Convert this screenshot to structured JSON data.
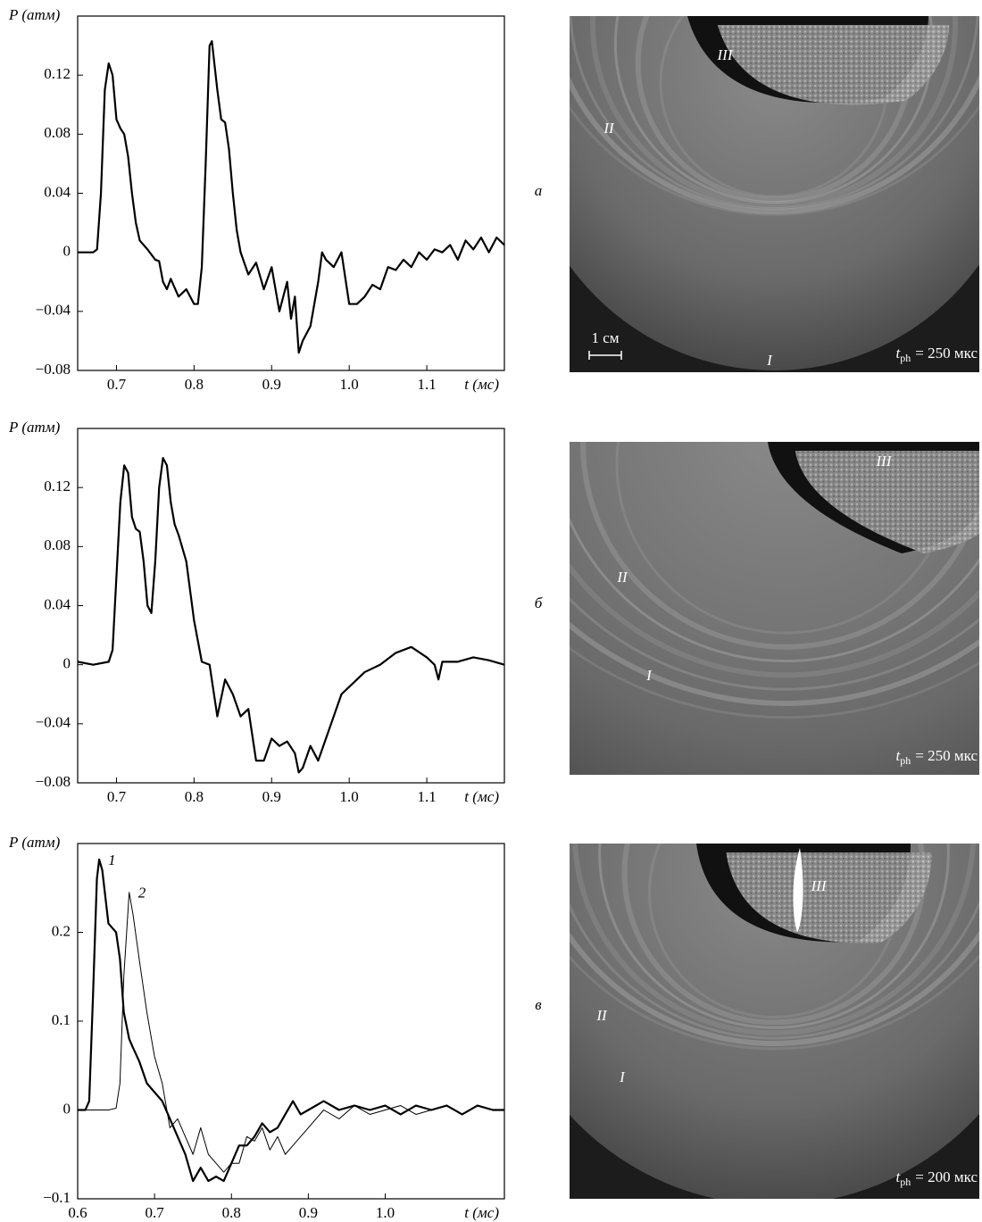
{
  "chart_data": [
    {
      "type": "line",
      "y_label": "P (атм)",
      "x_label": "t (мс)",
      "xlim": [
        0.65,
        1.2
      ],
      "ylim": [
        -0.08,
        0.16
      ],
      "xticks": [
        0.7,
        0.8,
        0.9,
        {
          "value": 1,
          "label": "1.0"
        },
        1.1
      ],
      "yticks": [
        {
          "value": -0.08,
          "label": "−0.08"
        },
        {
          "value": -0.04,
          "label": "−0.04"
        },
        0,
        0.04,
        0.08,
        0.12
      ],
      "x": [
        0.65,
        0.66,
        0.67,
        0.675,
        0.68,
        0.685,
        0.69,
        0.695,
        0.7,
        0.705,
        0.71,
        0.715,
        0.72,
        0.725,
        0.73,
        0.74,
        0.75,
        0.755,
        0.76,
        0.765,
        0.77,
        0.78,
        0.79,
        0.8,
        0.805,
        0.81,
        0.815,
        0.82,
        0.823,
        0.83,
        0.835,
        0.84,
        0.845,
        0.85,
        0.855,
        0.86,
        0.87,
        0.88,
        0.89,
        0.9,
        0.91,
        0.92,
        0.925,
        0.93,
        0.935,
        0.94,
        0.95,
        0.96,
        0.965,
        0.97,
        0.98,
        0.99,
        1.0,
        1.01,
        1.02,
        1.03,
        1.04,
        1.05,
        1.06,
        1.07,
        1.08,
        1.09,
        1.1,
        1.11,
        1.12,
        1.13,
        1.14,
        1.15,
        1.16,
        1.17,
        1.18,
        1.19,
        1.2
      ],
      "series": [
        {
          "color": "#000000",
          "values": [
            0,
            0,
            0,
            0.002,
            0.04,
            0.11,
            0.128,
            0.12,
            0.09,
            0.084,
            0.08,
            0.065,
            0.04,
            0.02,
            0.008,
            0.002,
            -0.005,
            -0.006,
            -0.02,
            -0.025,
            -0.018,
            -0.03,
            -0.025,
            -0.035,
            -0.035,
            -0.01,
            0.06,
            0.14,
            0.143,
            0.11,
            0.09,
            0.088,
            0.07,
            0.04,
            0.015,
            0,
            -0.015,
            -0.007,
            -0.025,
            -0.01,
            -0.04,
            -0.02,
            -0.045,
            -0.03,
            -0.068,
            -0.06,
            -0.05,
            -0.02,
            0,
            -0.005,
            -0.01,
            0,
            -0.035,
            -0.035,
            -0.03,
            -0.022,
            -0.025,
            -0.01,
            -0.012,
            -0.005,
            -0.01,
            0,
            -0.005,
            0.002,
            0,
            0.005,
            -0.005,
            0.008,
            0.002,
            0.01,
            0,
            0.01,
            0.005
          ]
        }
      ]
    },
    {
      "type": "line",
      "y_label": "P (атм)",
      "x_label": "t (мс)",
      "xlim": [
        0.65,
        1.2
      ],
      "ylim": [
        -0.08,
        0.16
      ],
      "xticks": [
        0.7,
        0.8,
        0.9,
        {
          "value": 1,
          "label": "1.0"
        },
        1.1
      ],
      "yticks": [
        {
          "value": -0.08,
          "label": "−0.08"
        },
        {
          "value": -0.04,
          "label": "−0.04"
        },
        0,
        0.04,
        0.08,
        0.12
      ],
      "x": [
        0.65,
        0.67,
        0.69,
        0.695,
        0.7,
        0.705,
        0.71,
        0.715,
        0.72,
        0.725,
        0.73,
        0.735,
        0.74,
        0.745,
        0.75,
        0.755,
        0.76,
        0.765,
        0.77,
        0.775,
        0.78,
        0.79,
        0.8,
        0.81,
        0.82,
        0.83,
        0.84,
        0.85,
        0.86,
        0.87,
        0.88,
        0.89,
        0.9,
        0.91,
        0.92,
        0.93,
        0.935,
        0.94,
        0.95,
        0.96,
        0.97,
        0.98,
        0.99,
        1.0,
        1.02,
        1.04,
        1.06,
        1.08,
        1.1,
        1.11,
        1.115,
        1.12,
        1.14,
        1.16,
        1.18,
        1.2
      ],
      "series": [
        {
          "color": "#000000",
          "values": [
            0.002,
            0,
            0.002,
            0.01,
            0.06,
            0.11,
            0.135,
            0.13,
            0.1,
            0.092,
            0.09,
            0.07,
            0.04,
            0.035,
            0.07,
            0.12,
            0.14,
            0.135,
            0.11,
            0.095,
            0.088,
            0.07,
            0.03,
            0.002,
            0,
            -0.035,
            -0.01,
            -0.02,
            -0.035,
            -0.03,
            -0.065,
            -0.065,
            -0.05,
            -0.055,
            -0.052,
            -0.06,
            -0.073,
            -0.07,
            -0.055,
            -0.065,
            -0.05,
            -0.035,
            -0.02,
            -0.015,
            -0.005,
            0,
            0.008,
            0.012,
            0.005,
            0,
            -0.01,
            0.002,
            0.002,
            0.005,
            0.003,
            0
          ]
        }
      ]
    },
    {
      "type": "line",
      "y_label": "P (атм)",
      "x_label": "t (мс)",
      "xlim": [
        0.6,
        1.155
      ],
      "ylim": [
        -0.1,
        0.3
      ],
      "xticks": [
        0.6,
        0.7,
        0.8,
        0.9,
        {
          "value": 1,
          "label": "1.0"
        }
      ],
      "yticks": [
        {
          "value": -0.1,
          "label": "−0.1"
        },
        0,
        0.1,
        0.2
      ],
      "x": [
        0.6,
        0.61,
        0.615,
        0.62,
        0.625,
        0.628,
        0.632,
        0.64,
        0.65,
        0.655,
        0.66,
        0.667,
        0.672,
        0.68,
        0.69,
        0.7,
        0.71,
        0.72,
        0.73,
        0.74,
        0.75,
        0.76,
        0.77,
        0.78,
        0.79,
        0.8,
        0.81,
        0.82,
        0.83,
        0.84,
        0.85,
        0.86,
        0.87,
        0.88,
        0.89,
        0.9,
        0.92,
        0.94,
        0.96,
        0.98,
        1.0,
        1.02,
        1.04,
        1.06,
        1.08,
        1.1,
        1.12,
        1.14,
        1.155
      ],
      "series": [
        {
          "name": "1",
          "color": "#000000",
          "values": [
            0,
            0,
            0.01,
            0.13,
            0.26,
            0.282,
            0.27,
            0.21,
            0.2,
            0.17,
            0.11,
            0.08,
            0.07,
            0.055,
            0.03,
            0.02,
            0.01,
            -0.01,
            -0.03,
            -0.05,
            -0.08,
            -0.065,
            -0.08,
            -0.075,
            -0.08,
            -0.06,
            -0.04,
            -0.04,
            -0.03,
            -0.015,
            -0.025,
            -0.02,
            -0.005,
            0.01,
            -0.005,
            0,
            0.01,
            0,
            0.005,
            0,
            0.005,
            -0.005,
            0.005,
            0,
            0.005,
            -0.005,
            0.005,
            0,
            0
          ]
        },
        {
          "name": "2",
          "color": "#000000",
          "values": [
            0,
            0,
            0,
            0,
            0,
            0,
            0,
            0,
            0.002,
            0.03,
            0.15,
            0.245,
            0.22,
            0.17,
            0.11,
            0.06,
            0.03,
            -0.02,
            -0.01,
            -0.03,
            -0.05,
            -0.02,
            -0.05,
            -0.06,
            -0.07,
            -0.06,
            -0.06,
            -0.03,
            -0.035,
            -0.02,
            -0.045,
            -0.03,
            -0.05,
            -0.04,
            -0.03,
            -0.02,
            0,
            -0.01,
            0.005,
            -0.005,
            0,
            0.005,
            -0.005,
            0,
            0.005,
            -0.005,
            0.005,
            0,
            0
          ]
        }
      ]
    }
  ],
  "photos": [
    {
      "panel": "а",
      "labels": [
        "III",
        "II",
        "I"
      ],
      "scale_bar": "1 см",
      "time": {
        "symbol": "t",
        "subscript": "ph",
        "text": "= 250 мкс"
      }
    },
    {
      "panel": "б",
      "labels": [
        "III",
        "II",
        "I"
      ],
      "time": {
        "symbol": "t",
        "subscript": "ph",
        "text": "= 250 мкс"
      }
    },
    {
      "panel": "в",
      "labels": [
        "III",
        "II",
        "I"
      ],
      "time": {
        "symbol": "t",
        "subscript": "ph",
        "text": "= 200 мкс"
      }
    }
  ]
}
